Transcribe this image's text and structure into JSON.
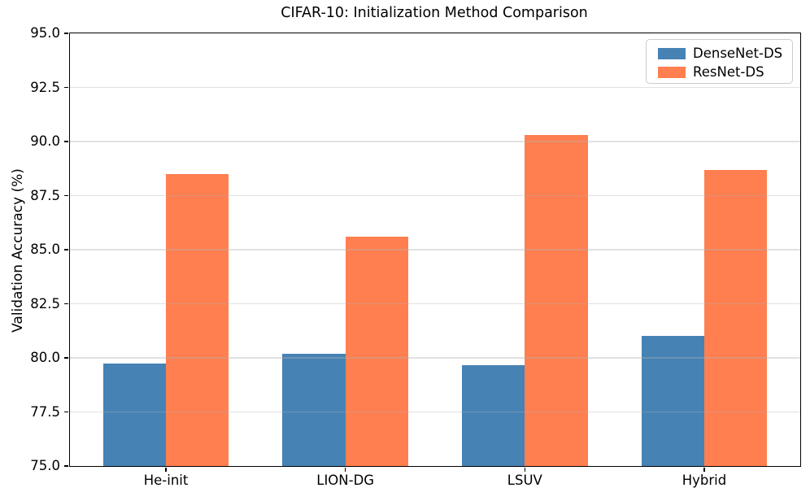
{
  "chart_data": {
    "type": "bar",
    "title": "CIFAR-10: Initialization Method Comparison",
    "xlabel": "",
    "ylabel": "Validation Accuracy (%)",
    "categories": [
      "He-init",
      "LION-DG",
      "LSUV",
      "Hybrid"
    ],
    "series": [
      {
        "name": "DenseNet-DS",
        "color": "#4682b4",
        "values": [
          79.75,
          80.2,
          79.65,
          81.0
        ]
      },
      {
        "name": "ResNet-DS",
        "color": "#ff7f50",
        "values": [
          88.5,
          85.6,
          90.3,
          88.7
        ]
      }
    ],
    "ylim": [
      75.0,
      95.0
    ],
    "yticks": [
      75.0,
      77.5,
      80.0,
      82.5,
      85.0,
      87.5,
      90.0,
      92.5,
      95.0
    ],
    "ytick_labels": [
      "75.0",
      "77.5",
      "80.0",
      "82.5",
      "85.0",
      "87.5",
      "90.0",
      "92.5",
      "95.0"
    ],
    "xlim": [
      -0.535,
      3.535
    ],
    "bar_width": 0.35,
    "grid": true,
    "grid_axis": "y",
    "legend_position": "upper right",
    "legend_entries": [
      "DenseNet-DS",
      "ResNet-DS"
    ]
  }
}
